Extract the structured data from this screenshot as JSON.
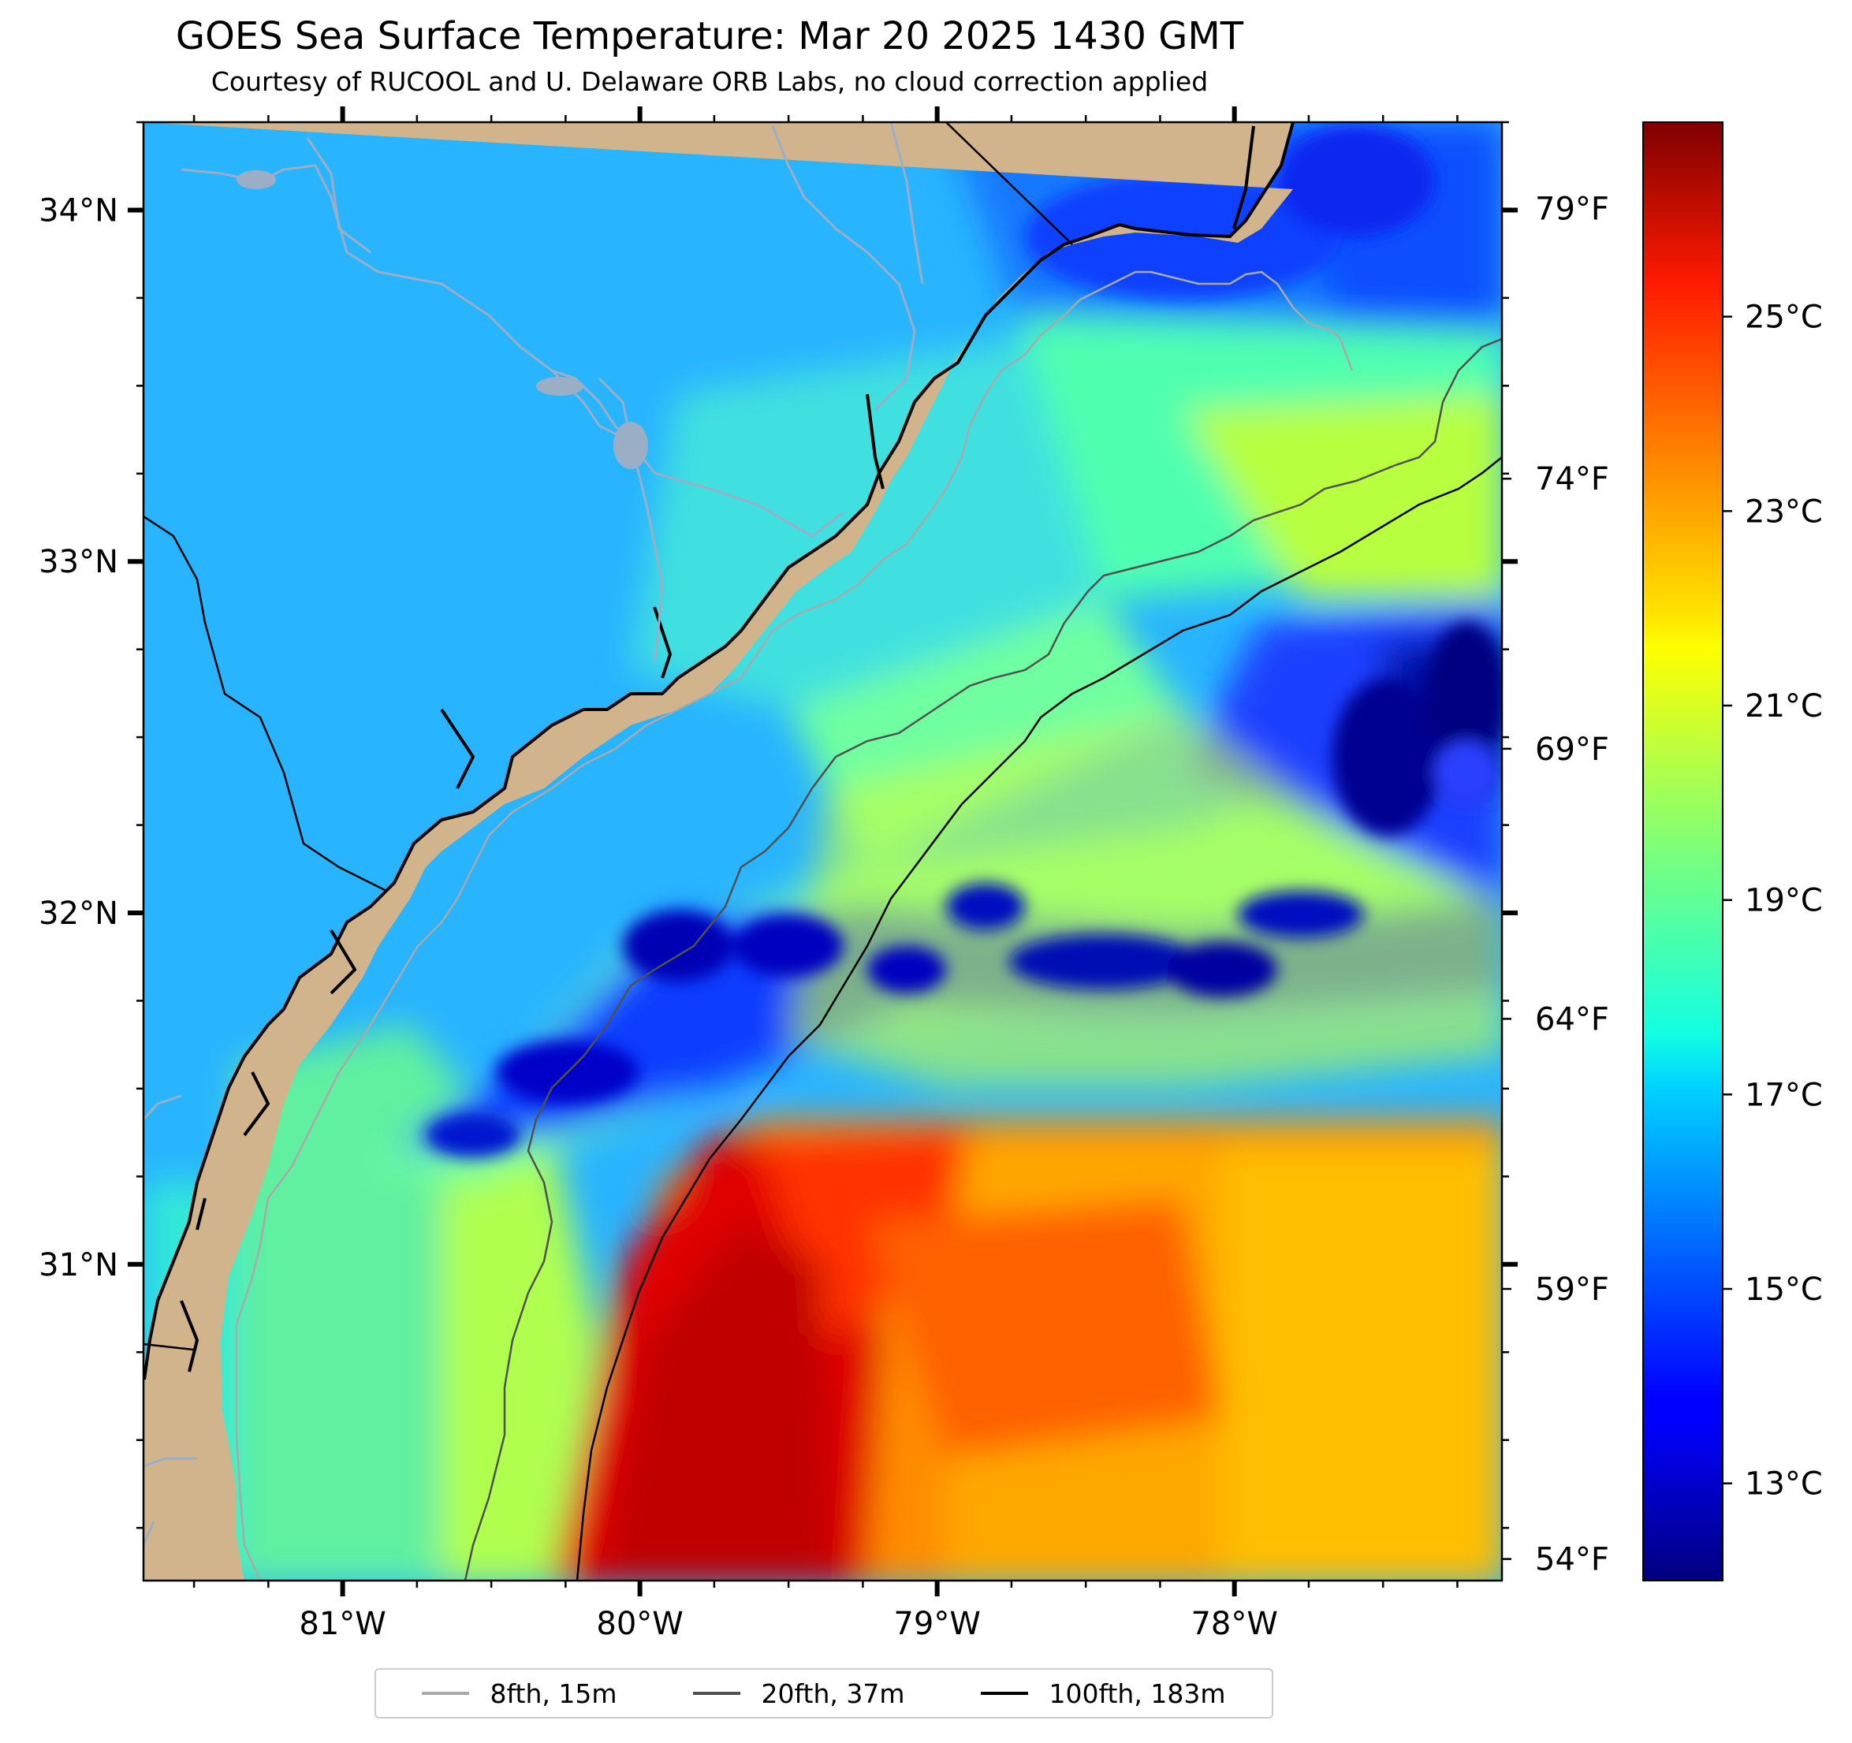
{
  "title": "GOES Sea Surface Temperature: Mar 20 2025 1430 GMT",
  "subtitle": "Courtesy of RUCOOL and U. Delaware ORB Labs, no cloud correction applied",
  "map": {
    "region": "South Carolina / Georgia coast",
    "lat_range": [
      30.1,
      34.25
    ],
    "lon_range": [
      -81.67,
      -77.1
    ],
    "lat_ticks": [
      {
        "value": 34,
        "label": "34°N"
      },
      {
        "value": 33,
        "label": "33°N"
      },
      {
        "value": 32,
        "label": "32°N"
      },
      {
        "value": 31,
        "label": "31°N"
      }
    ],
    "lon_ticks": [
      {
        "value": -81,
        "label": "81°W"
      },
      {
        "value": -80,
        "label": "80°W"
      },
      {
        "value": -79,
        "label": "79°W"
      },
      {
        "value": -78,
        "label": "78°W"
      }
    ],
    "colors": {
      "land": "#d2b48c",
      "coastline": "#000000",
      "rivers": "#9aaec6"
    }
  },
  "colorbar": {
    "colormap": "jet",
    "celsius_range": [
      12,
      27
    ],
    "celsius_ticks": [
      {
        "value": 13,
        "label": "13°C"
      },
      {
        "value": 15,
        "label": "15°C"
      },
      {
        "value": 17,
        "label": "17°C"
      },
      {
        "value": 19,
        "label": "19°C"
      },
      {
        "value": 21,
        "label": "21°C"
      },
      {
        "value": 23,
        "label": "23°C"
      },
      {
        "value": 25,
        "label": "25°C"
      }
    ],
    "fahrenheit_ticks": [
      {
        "value": 54,
        "label": "54°F"
      },
      {
        "value": 59,
        "label": "59°F"
      },
      {
        "value": 64,
        "label": "64°F"
      },
      {
        "value": 69,
        "label": "69°F"
      },
      {
        "value": 74,
        "label": "74°F"
      },
      {
        "value": 79,
        "label": "79°F"
      }
    ]
  },
  "legend": {
    "placement": "bottom-center",
    "items": [
      {
        "label": "8fth, 15m",
        "color": "#a9a9a9"
      },
      {
        "label": "20fth, 37m",
        "color": "#505050"
      },
      {
        "label": "100fth, 183m",
        "color": "#000000"
      }
    ]
  }
}
